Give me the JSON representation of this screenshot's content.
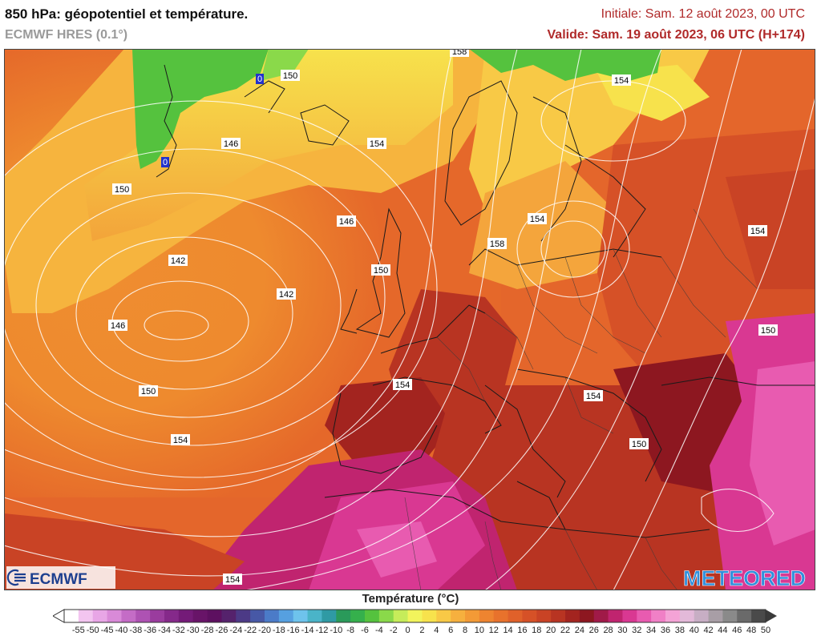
{
  "header": {
    "title": "850 hPa: géopotentiel et température.",
    "model": "ECMWF HRES (0.1°)",
    "initial": "Initiale: Sam. 12 août 2023, 00 UTC",
    "valid": "Valide: Sam. 19 août 2023, 06 UTC (H+174)"
  },
  "map": {
    "contour_labels": [
      "158",
      "150",
      "154",
      "146",
      "150",
      "154",
      "146",
      "142",
      "150",
      "142",
      "146",
      "154",
      "154",
      "150",
      "154",
      "158",
      "154",
      "150",
      "154",
      "150",
      "154"
    ],
    "blue_labels": [
      "0",
      "0"
    ]
  },
  "logos": {
    "left": "ECMWF",
    "right": "METEORED"
  },
  "legend": {
    "title": "Température (°C)",
    "ticks": [
      "-55",
      "-50",
      "-45",
      "-40",
      "-38",
      "-36",
      "-34",
      "-32",
      "-30",
      "-28",
      "-26",
      "-24",
      "-22",
      "-20",
      "-18",
      "-16",
      "-14",
      "-12",
      "-10",
      "-8",
      "-6",
      "-4",
      "-2",
      "0",
      "2",
      "4",
      "6",
      "8",
      "10",
      "12",
      "14",
      "16",
      "18",
      "20",
      "22",
      "24",
      "26",
      "28",
      "30",
      "32",
      "34",
      "36",
      "38",
      "40",
      "42",
      "44",
      "46",
      "48",
      "50"
    ],
    "colors": [
      "#ffffff",
      "#f3c5f0",
      "#e8a6e6",
      "#d98ad8",
      "#c46cc6",
      "#ae52b3",
      "#9a3c9e",
      "#85298a",
      "#741b78",
      "#681468",
      "#5d1060",
      "#55226c",
      "#4c3a86",
      "#4758a6",
      "#4b7bc8",
      "#56a0e0",
      "#6ec3ec",
      "#4ab4c8",
      "#2f9aa4",
      "#2a9a5a",
      "#35b04c",
      "#55c23e",
      "#8ad94a",
      "#c6ec5a",
      "#f2f45c",
      "#f7e24c",
      "#f8c946",
      "#f6b03e",
      "#f39a36",
      "#ee8430",
      "#e8722c",
      "#e0612a",
      "#d65127",
      "#c94325",
      "#b83422",
      "#a3241f",
      "#8d1720",
      "#a01a48",
      "#c0246f",
      "#d93892",
      "#e85bb0",
      "#f080c6",
      "#f4a3d6",
      "#e3b9d9",
      "#c7aec4",
      "#a89ea6",
      "#8a8a8a",
      "#6a6a6a",
      "#4a4a4a"
    ]
  }
}
